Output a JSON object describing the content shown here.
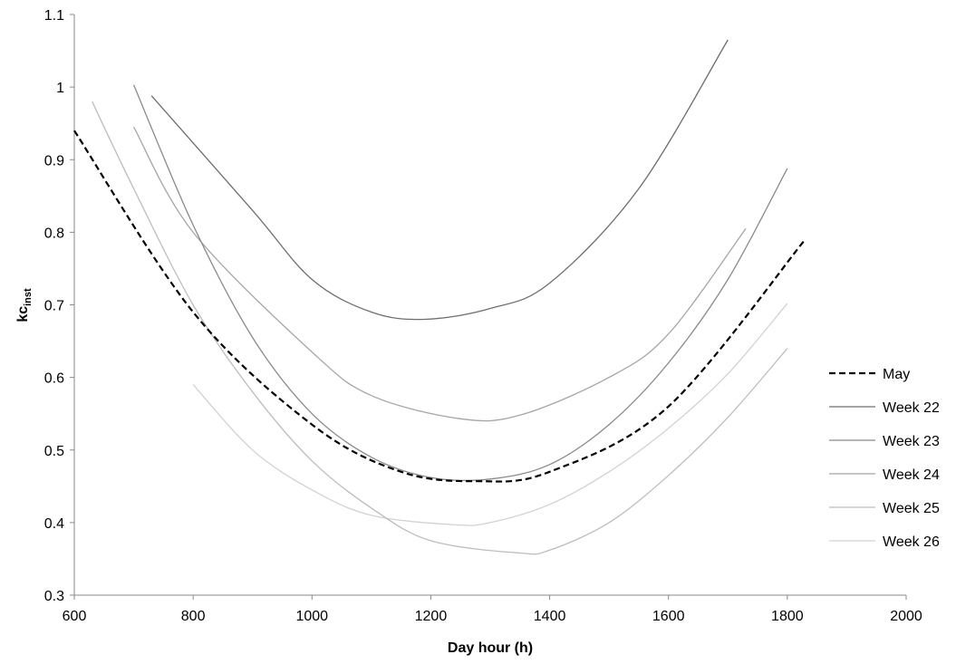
{
  "chart_data": {
    "type": "line",
    "xlabel": "Day hour (h)",
    "ylabel": {
      "main": "kc",
      "sub": "inst"
    },
    "xlim": [
      600,
      2000
    ],
    "ylim": [
      0.3,
      1.1
    ],
    "x_ticks": [
      "600",
      "800",
      "1000",
      "1200",
      "1400",
      "1600",
      "1800",
      "2000"
    ],
    "y_ticks": [
      "0.3",
      "0.4",
      "0.5",
      "0.6",
      "0.7",
      "0.8",
      "0.9",
      "1",
      "1.1"
    ],
    "grid": false,
    "legend_position": "right",
    "series": [
      {
        "name": "May",
        "style": "dashed",
        "color": "#000000",
        "points": [
          [
            600,
            0.94
          ],
          [
            800,
            0.69
          ],
          [
            1000,
            0.535
          ],
          [
            1150,
            0.47
          ],
          [
            1280,
            0.457
          ],
          [
            1400,
            0.47
          ],
          [
            1600,
            0.56
          ],
          [
            1830,
            0.79
          ]
        ]
      },
      {
        "name": "Week 22",
        "style": "solid",
        "color": "#6e6e6e",
        "points": [
          [
            730,
            0.988
          ],
          [
            900,
            0.83
          ],
          [
            1000,
            0.735
          ],
          [
            1100,
            0.69
          ],
          [
            1190,
            0.68
          ],
          [
            1300,
            0.695
          ],
          [
            1400,
            0.73
          ],
          [
            1550,
            0.86
          ],
          [
            1700,
            1.065
          ]
        ]
      },
      {
        "name": "Week 23",
        "style": "solid",
        "color": "#8a8a8a",
        "points": [
          [
            700,
            1.003
          ],
          [
            800,
            0.81
          ],
          [
            900,
            0.655
          ],
          [
            1000,
            0.55
          ],
          [
            1100,
            0.49
          ],
          [
            1200,
            0.462
          ],
          [
            1300,
            0.46
          ],
          [
            1400,
            0.48
          ],
          [
            1500,
            0.535
          ],
          [
            1600,
            0.62
          ],
          [
            1700,
            0.735
          ],
          [
            1800,
            0.888
          ]
        ]
      },
      {
        "name": "Week 24",
        "style": "solid",
        "color": "#a5a5a5",
        "points": [
          [
            700,
            0.945
          ],
          [
            800,
            0.8
          ],
          [
            1000,
            0.635
          ],
          [
            1100,
            0.575
          ],
          [
            1250,
            0.543
          ],
          [
            1350,
            0.548
          ],
          [
            1500,
            0.6
          ],
          [
            1600,
            0.66
          ],
          [
            1730,
            0.805
          ]
        ]
      },
      {
        "name": "Week 25",
        "style": "solid",
        "color": "#bdbdbd",
        "points": [
          [
            630,
            0.98
          ],
          [
            700,
            0.86
          ],
          [
            800,
            0.7
          ],
          [
            900,
            0.58
          ],
          [
            1000,
            0.485
          ],
          [
            1100,
            0.42
          ],
          [
            1200,
            0.375
          ],
          [
            1350,
            0.358
          ],
          [
            1400,
            0.362
          ],
          [
            1500,
            0.4
          ],
          [
            1600,
            0.465
          ],
          [
            1700,
            0.545
          ],
          [
            1800,
            0.64
          ]
        ]
      },
      {
        "name": "Week 26",
        "style": "solid",
        "color": "#d2d2d2",
        "points": [
          [
            800,
            0.59
          ],
          [
            900,
            0.5
          ],
          [
            1000,
            0.445
          ],
          [
            1100,
            0.41
          ],
          [
            1240,
            0.397
          ],
          [
            1300,
            0.4
          ],
          [
            1400,
            0.425
          ],
          [
            1500,
            0.47
          ],
          [
            1600,
            0.53
          ],
          [
            1700,
            0.605
          ],
          [
            1800,
            0.702
          ]
        ]
      }
    ]
  }
}
